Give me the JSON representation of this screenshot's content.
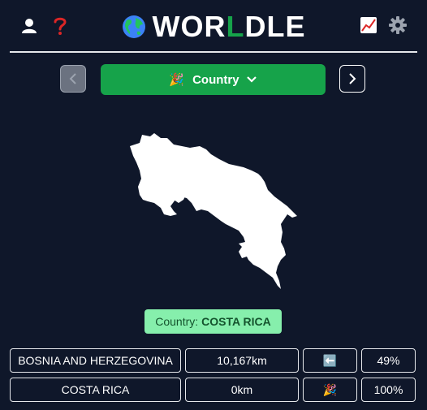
{
  "header": {
    "title_prefix": "WOR",
    "title_accent": "L",
    "title_suffix": "DLE",
    "icons": {
      "left": [
        "user-icon",
        "help-icon"
      ],
      "right": [
        "stats-icon",
        "settings-icon"
      ]
    },
    "colors": {
      "accent": "#16a34a",
      "help": "#dc2626"
    }
  },
  "mode": {
    "label": "Country",
    "emoji": "🎉"
  },
  "answer": {
    "label": "Country:",
    "value": "COSTA RICA"
  },
  "guesses": [
    {
      "name": "BOSNIA AND HERZEGOVINA",
      "distance": "10,167km",
      "direction": "⬅️",
      "percent": "49%"
    },
    {
      "name": "COSTA RICA",
      "distance": "0km",
      "direction": "🎉",
      "percent": "100%"
    }
  ]
}
